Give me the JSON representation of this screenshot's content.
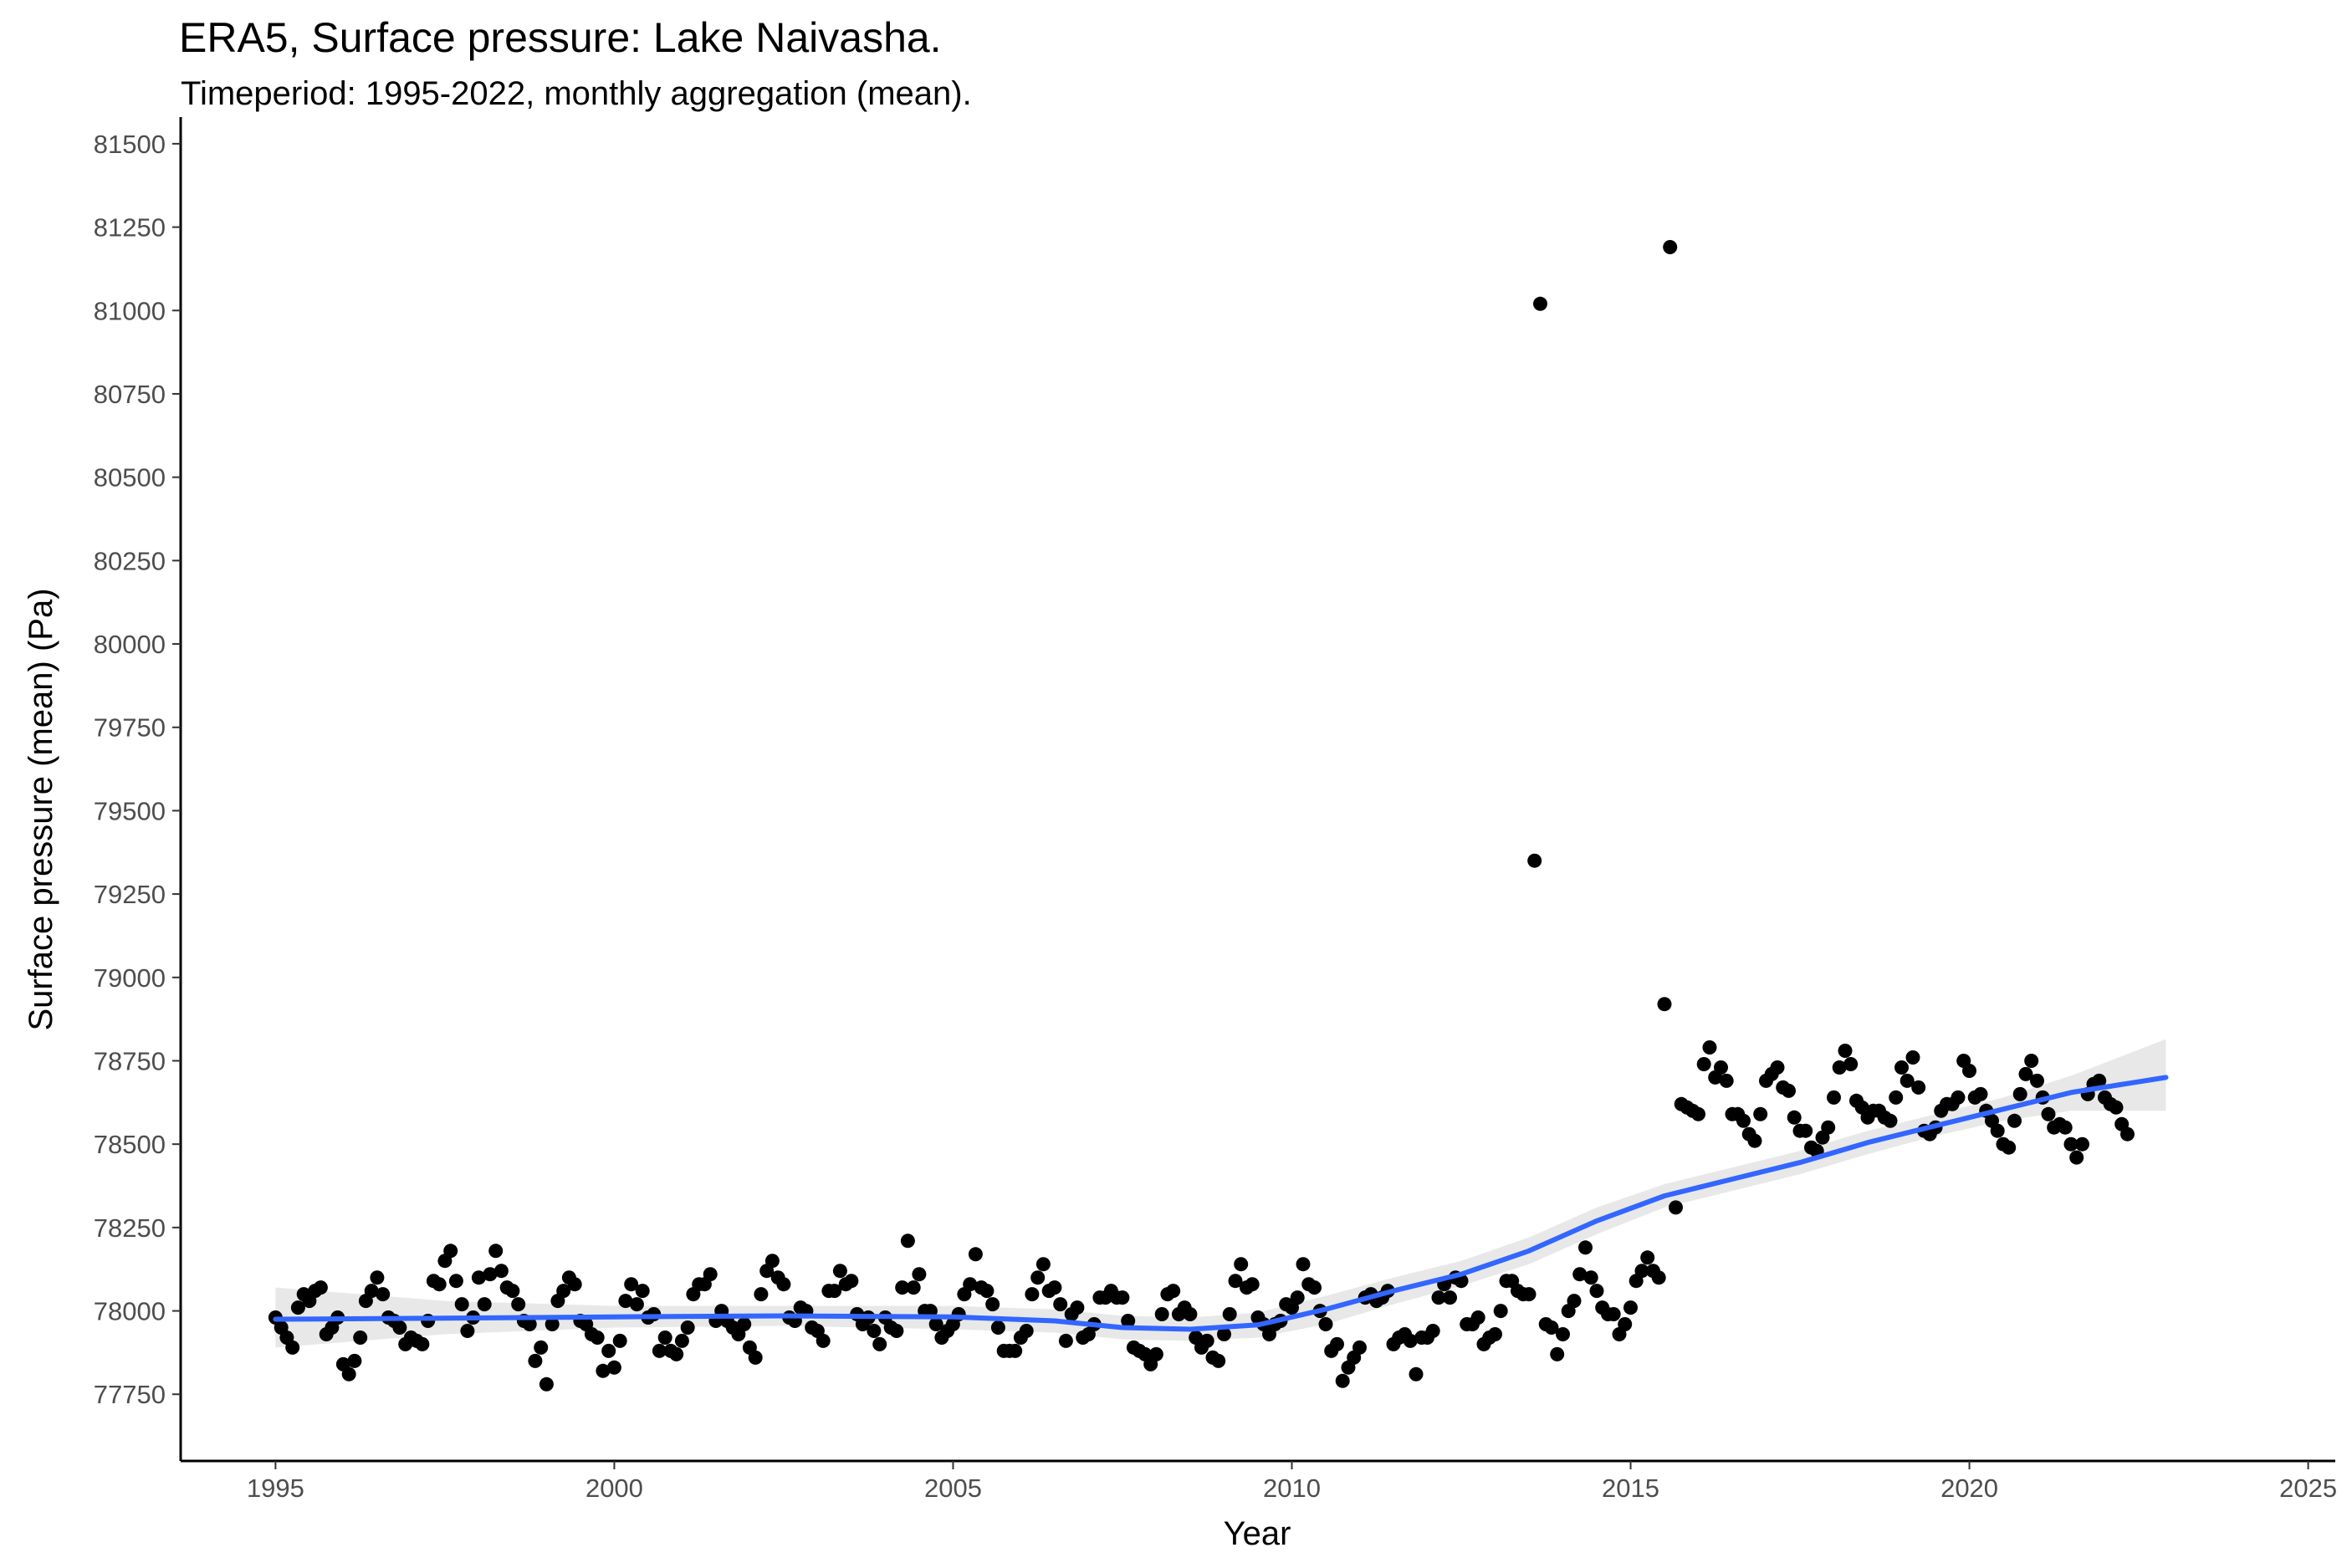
{
  "chart_data": {
    "type": "scatter",
    "title": "ERA5, Surface pressure: Lake Naivasha.",
    "subtitle": "Timeperiod: 1995-2022, monthly aggregation (mean).",
    "xlabel": "Year",
    "ylabel": "Surface pressure (mean) (Pa)",
    "xlim": [
      1993.6,
      2025.4
    ],
    "ylim": [
      77550,
      81580
    ],
    "x_ticks": [
      1995,
      2000,
      2005,
      2010,
      2015,
      2020,
      2025
    ],
    "y_ticks": [
      77750,
      78000,
      78250,
      78500,
      78750,
      79000,
      79250,
      79500,
      79750,
      80000,
      80250,
      80500,
      80750,
      81000,
      81250,
      81500
    ],
    "grid": false,
    "legend": "none",
    "colors": {
      "points": "#000000",
      "trend": "#3366ff",
      "confidence_band": "#d9d9d9"
    },
    "series": [
      {
        "type": "scatter",
        "x_start": 1995.0,
        "x_step": 0.08333,
        "y": [
          77980,
          77950,
          77920,
          77890,
          78010,
          78050,
          78030,
          78060,
          78070,
          77930,
          77950,
          77980,
          77840,
          77810,
          77850,
          77920,
          78030,
          78060,
          78100,
          78050,
          77980,
          77970,
          77950,
          77900,
          77920,
          77910,
          77900,
          77970,
          78090,
          78080,
          78150,
          78180,
          78090,
          78020,
          77940,
          77980,
          78100,
          78020,
          78110,
          78180,
          78120,
          78070,
          78060,
          78020,
          77970,
          77960,
          77850,
          77890,
          77780,
          77960,
          78030,
          78060,
          78100,
          78080,
          77970,
          77960,
          77930,
          77920,
          77820,
          77880,
          77830,
          77910,
          78030,
          78080,
          78020,
          78060,
          77980,
          77990,
          77880,
          77920,
          77880,
          77870,
          77910,
          77950,
          78050,
          78080,
          78080,
          78110,
          77970,
          78000,
          77970,
          77950,
          77930,
          77960,
          77890,
          77860,
          78050,
          78120,
          78150,
          78100,
          78080,
          77980,
          77970,
          78010,
          78000,
          77950,
          77940,
          77910,
          78060,
          78060,
          78120,
          78080,
          78090,
          77990,
          77960,
          77980,
          77940,
          77900,
          77980,
          77950,
          77940,
          78070,
          78210,
          78070,
          78110,
          78000,
          78000,
          77960,
          77920,
          77940,
          77960,
          77990,
          78050,
          78080,
          78170,
          78070,
          78060,
          78020,
          77950,
          77880,
          77880,
          77880,
          77920,
          77940,
          78050,
          78100,
          78140,
          78060,
          78070,
          78020,
          77910,
          77990,
          78010,
          77920,
          77930,
          77960,
          78040,
          78040,
          78060,
          78040,
          78040,
          77970,
          77890,
          77880,
          77870,
          77840,
          77870,
          77990,
          78050,
          78060,
          77990,
          78010,
          77990,
          77920,
          77890,
          77910,
          77860,
          77850,
          77930,
          77990,
          78090,
          78140,
          78070,
          78080,
          77980,
          77960,
          77930,
          77960,
          77970,
          78020,
          78010,
          78040,
          78140,
          78080,
          78070,
          78000,
          77960,
          77880,
          77900,
          77790,
          77830,
          77860,
          77890,
          78040,
          78050,
          78030,
          78040,
          78060,
          77900,
          77920,
          77930,
          77910,
          77810,
          77920,
          77920,
          77940,
          78040,
          78080,
          78040,
          78100,
          78090,
          77960,
          77960,
          77980,
          77900,
          77920,
          77930,
          78000,
          78090,
          78090,
          78060,
          78050,
          78050,
          79350,
          81020,
          77960,
          77950,
          77870,
          77930,
          78000,
          78030,
          78110,
          78190,
          78100,
          78060,
          78010,
          77990,
          77990,
          77930,
          77960,
          78010,
          78090,
          78120,
          78160,
          78120,
          78100,
          78920,
          81190,
          78310,
          78620,
          78610,
          78600,
          78590,
          78740,
          78790,
          78700,
          78730,
          78690,
          78590,
          78590,
          78570,
          78530,
          78510,
          78590,
          78690,
          78710,
          78730,
          78670,
          78660,
          78580,
          78540,
          78540,
          78490,
          78480,
          78520,
          78550,
          78640,
          78730,
          78780,
          78740,
          78630,
          78610,
          78580,
          78600,
          78600,
          78580,
          78570,
          78640,
          78730,
          78690,
          78760,
          78670,
          78540,
          78530,
          78550,
          78600,
          78620,
          78620,
          78640,
          78750,
          78720,
          78640,
          78650,
          78600,
          78570,
          78540,
          78500,
          78490,
          78570,
          78650,
          78710,
          78750,
          78690,
          78640,
          78590,
          78550,
          78560,
          78550,
          78500,
          78460,
          78500,
          78650,
          78680,
          78690,
          78640,
          78620,
          78610,
          78560,
          78530
        ]
      },
      {
        "type": "line",
        "name": "trend",
        "x": [
          1995,
          1997.5,
          2000,
          2002.5,
          2005,
          2006.5,
          2007.5,
          2008.5,
          2009.5,
          2010.5,
          2011.5,
          2012.5,
          2013.5,
          2014.5,
          2015.5,
          2016.5,
          2017.5,
          2018.5,
          2019.5,
          2020.5,
          2021.5,
          2022.9
        ],
        "y": [
          77975,
          77978,
          77982,
          77985,
          77982,
          77970,
          77950,
          77945,
          77958,
          78005,
          78060,
          78110,
          78180,
          78270,
          78345,
          78395,
          78445,
          78505,
          78555,
          78605,
          78655,
          78700
        ],
        "band_low": [
          77890,
          77930,
          77950,
          77955,
          77945,
          77935,
          77915,
          77910,
          77920,
          77960,
          78020,
          78075,
          78140,
          78230,
          78310,
          78360,
          78410,
          78470,
          78525,
          78570,
          78600,
          78600
        ],
        "band_high": [
          78070,
          78030,
          78015,
          78015,
          78015,
          78005,
          77985,
          77980,
          77995,
          78045,
          78100,
          78150,
          78220,
          78310,
          78380,
          78430,
          78480,
          78540,
          78590,
          78640,
          78705,
          78815
        ]
      }
    ]
  }
}
